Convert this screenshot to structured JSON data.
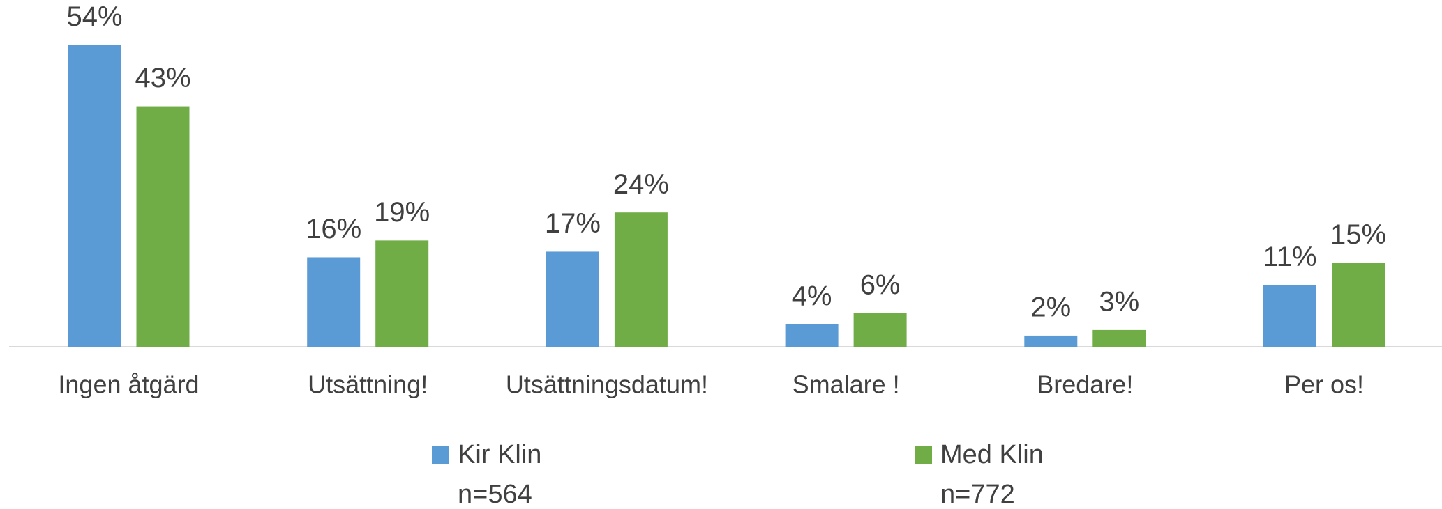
{
  "chart_data": {
    "type": "bar",
    "categories": [
      "Ingen åtgärd",
      "Utsättning!",
      "Utsättningsdatum!",
      "Smalare !",
      "Bredare!",
      "Per os!"
    ],
    "series": [
      {
        "name": "Kir  Klin",
        "n": "n=564",
        "color": "#5b9bd5",
        "values": [
          54,
          16,
          17,
          4,
          2,
          11
        ],
        "value_labels": [
          "54%",
          "16%",
          "17%",
          "4%",
          "2%",
          "11%"
        ]
      },
      {
        "name": "Med Klin",
        "n": "n=772",
        "color": "#70ad47",
        "values": [
          43,
          19,
          24,
          6,
          3,
          15
        ],
        "value_labels": [
          "43%",
          "19%",
          "24%",
          "6%",
          "3%",
          "15%"
        ]
      }
    ],
    "ylim": [
      0,
      60
    ],
    "legend": "bottom"
  }
}
